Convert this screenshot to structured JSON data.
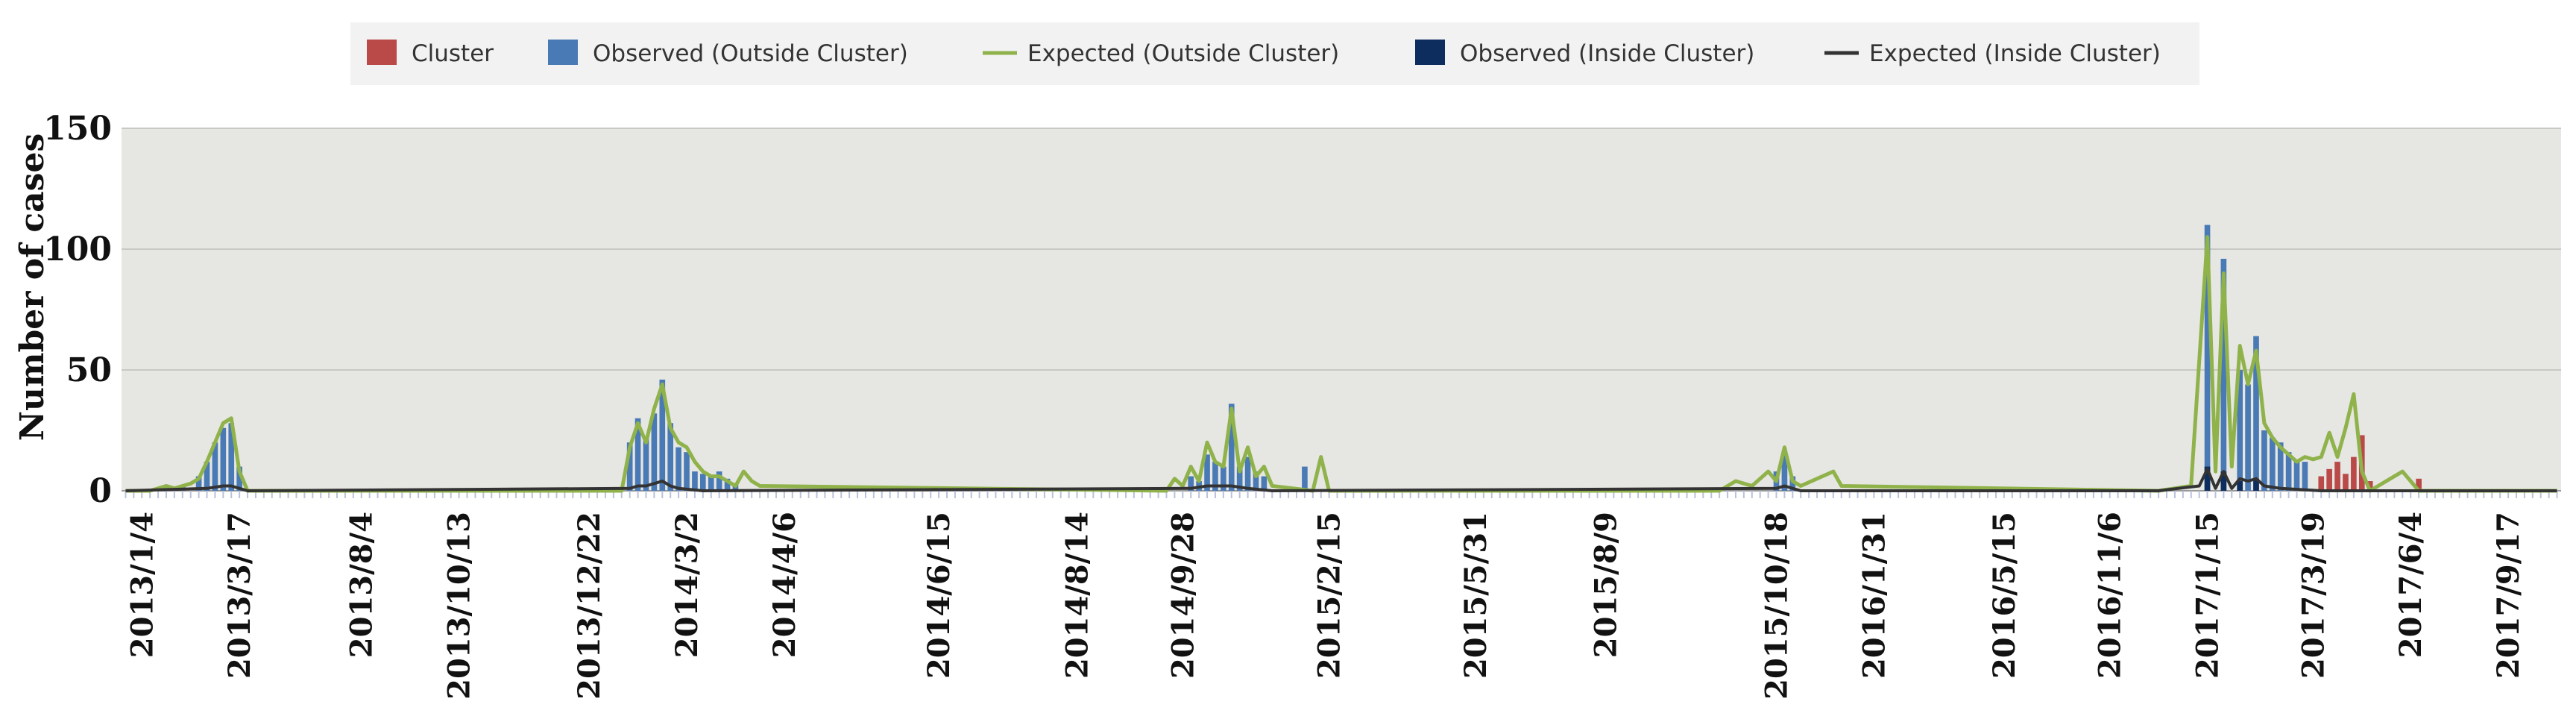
{
  "chart_data": {
    "type": "bar",
    "title": "",
    "xlabel": "",
    "ylabel": "Number of cases",
    "ylim": [
      0,
      150
    ],
    "yticks": [
      0,
      50,
      100,
      150
    ],
    "grid": true,
    "legend_position": "top-center",
    "colors": {
      "plot_background": "#e6e6e2",
      "grid": "#c8c8c4",
      "cluster": "#b94a48",
      "observed_outside": "#4a7ab5",
      "expected_outside": "#8fb24a",
      "observed_inside": "#0d2d5e",
      "expected_inside": "#333333"
    },
    "legend": [
      {
        "key": "cluster",
        "label": "Cluster",
        "kind": "box"
      },
      {
        "key": "observed_outside",
        "label": "Observed (Outside Cluster)",
        "kind": "box"
      },
      {
        "key": "expected_outside",
        "label": "Expected (Outside Cluster)",
        "kind": "line"
      },
      {
        "key": "observed_inside",
        "label": "Observed (Inside Cluster)",
        "kind": "box"
      },
      {
        "key": "expected_inside",
        "label": "Expected (Inside Cluster)",
        "kind": "line"
      }
    ],
    "x_tick_labels": [
      "2013/1/4",
      "2013/3/17",
      "2013/8/4",
      "2013/10/13",
      "2013/12/22",
      "2014/3/2",
      "2014/4/6",
      "2014/6/15",
      "2014/8/14",
      "2014/9/28",
      "2015/2/15",
      "2015/5/31",
      "2015/8/9",
      "2015/10/18",
      "2016/1/31",
      "2016/5/15",
      "2016/11/6",
      "2017/1/15",
      "2017/3/19",
      "2017/6/4",
      "2017/9/17"
    ],
    "x_tick_positions": [
      2,
      14,
      29,
      41,
      57,
      69,
      81,
      100,
      117,
      130,
      148,
      166,
      182,
      203,
      215,
      231,
      244,
      256,
      269,
      281,
      293
    ],
    "n_periods": 300,
    "cluster_range": [
      270,
      283
    ],
    "series": [
      {
        "name": "Observed (Outside Cluster)",
        "points": [
          [
            5,
            2
          ],
          [
            7,
            2
          ],
          [
            9,
            6
          ],
          [
            10,
            12
          ],
          [
            11,
            20
          ],
          [
            12,
            26
          ],
          [
            13,
            28
          ],
          [
            14,
            10
          ],
          [
            62,
            20
          ],
          [
            63,
            30
          ],
          [
            64,
            22
          ],
          [
            65,
            32
          ],
          [
            66,
            46
          ],
          [
            67,
            28
          ],
          [
            68,
            18
          ],
          [
            69,
            16
          ],
          [
            70,
            8
          ],
          [
            71,
            7
          ],
          [
            72,
            6
          ],
          [
            73,
            8
          ],
          [
            74,
            5
          ],
          [
            75,
            3
          ],
          [
            131,
            6
          ],
          [
            132,
            4
          ],
          [
            133,
            15
          ],
          [
            134,
            12
          ],
          [
            135,
            10
          ],
          [
            136,
            36
          ],
          [
            137,
            10
          ],
          [
            138,
            14
          ],
          [
            139,
            8
          ],
          [
            140,
            6
          ],
          [
            145,
            10
          ],
          [
            203,
            8
          ],
          [
            204,
            15
          ],
          [
            205,
            6
          ],
          [
            256,
            110
          ],
          [
            258,
            96
          ],
          [
            260,
            50
          ],
          [
            261,
            44
          ],
          [
            262,
            64
          ],
          [
            263,
            25
          ],
          [
            264,
            22
          ],
          [
            265,
            20
          ],
          [
            266,
            16
          ],
          [
            267,
            12
          ],
          [
            268,
            12
          ]
        ]
      },
      {
        "name": "Expected (Outside Cluster)",
        "points": [
          [
            0,
            0
          ],
          [
            3,
            0
          ],
          [
            5,
            2
          ],
          [
            6,
            1
          ],
          [
            8,
            3
          ],
          [
            9,
            5
          ],
          [
            10,
            12
          ],
          [
            11,
            20
          ],
          [
            12,
            28
          ],
          [
            13,
            30
          ],
          [
            14,
            8
          ],
          [
            15,
            0
          ],
          [
            61,
            0
          ],
          [
            62,
            18
          ],
          [
            63,
            28
          ],
          [
            64,
            20
          ],
          [
            65,
            34
          ],
          [
            66,
            44
          ],
          [
            67,
            26
          ],
          [
            68,
            20
          ],
          [
            69,
            18
          ],
          [
            70,
            12
          ],
          [
            71,
            8
          ],
          [
            72,
            6
          ],
          [
            73,
            6
          ],
          [
            74,
            4
          ],
          [
            75,
            2
          ],
          [
            76,
            8
          ],
          [
            77,
            4
          ],
          [
            78,
            2
          ],
          [
            128,
            0
          ],
          [
            129,
            5
          ],
          [
            130,
            2
          ],
          [
            131,
            10
          ],
          [
            132,
            4
          ],
          [
            133,
            20
          ],
          [
            134,
            12
          ],
          [
            135,
            10
          ],
          [
            136,
            34
          ],
          [
            137,
            8
          ],
          [
            138,
            18
          ],
          [
            139,
            6
          ],
          [
            140,
            10
          ],
          [
            141,
            2
          ],
          [
            146,
            0
          ],
          [
            147,
            14
          ],
          [
            148,
            0
          ],
          [
            196,
            0
          ],
          [
            198,
            4
          ],
          [
            200,
            2
          ],
          [
            202,
            8
          ],
          [
            203,
            4
          ],
          [
            204,
            18
          ],
          [
            205,
            4
          ],
          [
            206,
            2
          ],
          [
            210,
            8
          ],
          [
            211,
            2
          ],
          [
            250,
            0
          ],
          [
            254,
            2
          ],
          [
            256,
            105
          ],
          [
            257,
            8
          ],
          [
            258,
            90
          ],
          [
            259,
            10
          ],
          [
            260,
            60
          ],
          [
            261,
            44
          ],
          [
            262,
            58
          ],
          [
            263,
            28
          ],
          [
            264,
            22
          ],
          [
            265,
            18
          ],
          [
            266,
            15
          ],
          [
            267,
            12
          ],
          [
            268,
            14
          ],
          [
            269,
            13
          ],
          [
            270,
            14
          ],
          [
            271,
            24
          ],
          [
            272,
            14
          ],
          [
            273,
            26
          ],
          [
            274,
            40
          ],
          [
            275,
            8
          ],
          [
            276,
            0
          ],
          [
            280,
            8
          ],
          [
            281,
            4
          ],
          [
            282,
            0
          ],
          [
            299,
            0
          ]
        ]
      },
      {
        "name": "Observed (Inside Cluster)",
        "points": [
          [
            256,
            10
          ],
          [
            258,
            8
          ],
          [
            260,
            4
          ],
          [
            262,
            5
          ]
        ]
      },
      {
        "name": "Expected (Inside Cluster)",
        "points": [
          [
            0,
            0
          ],
          [
            10,
            1
          ],
          [
            12,
            2
          ],
          [
            13,
            2
          ],
          [
            14,
            1
          ],
          [
            15,
            0
          ],
          [
            62,
            1
          ],
          [
            63,
            2
          ],
          [
            64,
            2
          ],
          [
            65,
            3
          ],
          [
            66,
            4
          ],
          [
            67,
            2
          ],
          [
            68,
            1
          ],
          [
            71,
            0
          ],
          [
            131,
            1
          ],
          [
            133,
            2
          ],
          [
            136,
            2
          ],
          [
            138,
            1
          ],
          [
            141,
            0
          ],
          [
            203,
            1
          ],
          [
            204,
            2
          ],
          [
            206,
            0
          ],
          [
            250,
            0
          ],
          [
            255,
            2
          ],
          [
            256,
            9
          ],
          [
            257,
            1
          ],
          [
            258,
            8
          ],
          [
            259,
            1
          ],
          [
            260,
            5
          ],
          [
            261,
            4
          ],
          [
            262,
            5
          ],
          [
            263,
            2
          ],
          [
            265,
            1
          ],
          [
            270,
            0
          ],
          [
            299,
            0
          ]
        ]
      },
      {
        "name": "Cluster",
        "points": [
          [
            270,
            6
          ],
          [
            271,
            9
          ],
          [
            272,
            12
          ],
          [
            273,
            7
          ],
          [
            274,
            14
          ],
          [
            275,
            23
          ],
          [
            276,
            4
          ],
          [
            282,
            5
          ]
        ]
      }
    ]
  }
}
